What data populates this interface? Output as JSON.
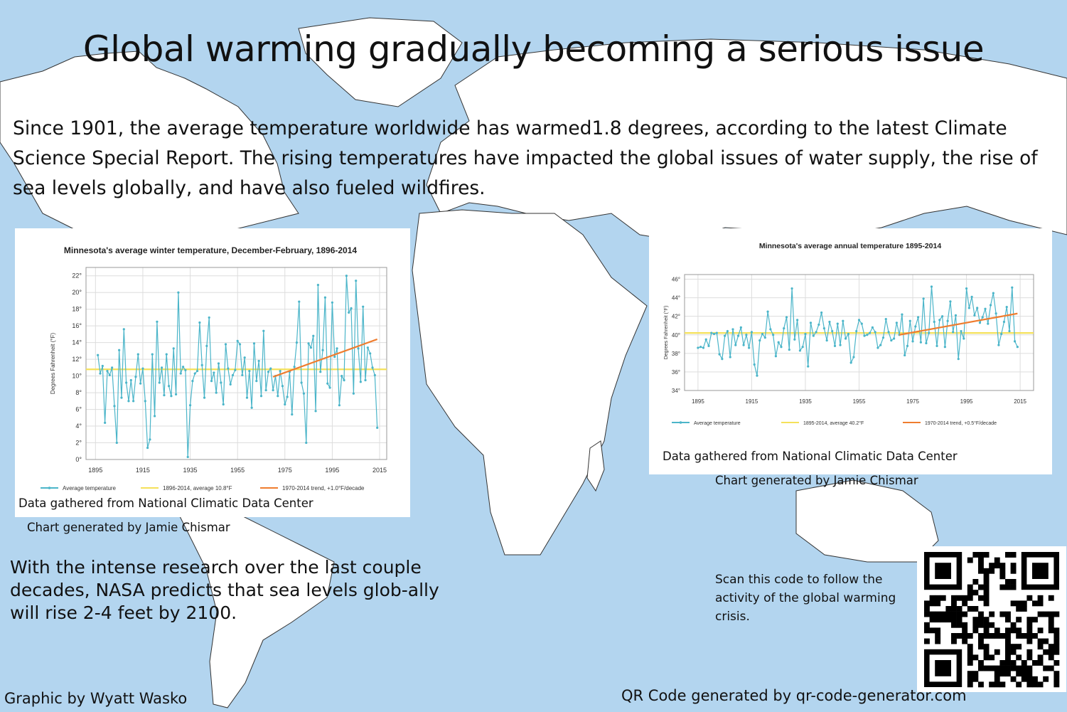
{
  "headline": "Global warming gradually becoming a serious issue",
  "intro": "Since 1901, the average temperature worldwide has warmed1.8 degrees, according to the latest Climate Science Special Report. The rising temperatures have impacted the global issues of water supply, the rise of sea levels globally, and have also fueled wildfires.",
  "prediction": "With the intense research over the last couple decades, NASA predicts that sea levels glob-ally will rise 2-4 feet by 2100.",
  "qr_caption": "Scan this code to follow the activity of the global warming crisis.",
  "footer": {
    "graphic_credit": "Graphic by Wyatt Wasko",
    "qr_credit": "QR Code generated by qr-code-generator.com"
  },
  "colors": {
    "ocean": "#b3d5ef",
    "land": "#ffffff",
    "series": "#4bb5c9",
    "average": "#f5e15a",
    "trend": "#ef7d2f"
  },
  "chart_data": [
    {
      "type": "line",
      "title": "Minnesota's average winter temperature, December-February, 1896-2014",
      "ylabel": "Degrees Fahrenheit (°F)",
      "xlabel": "",
      "xlim": [
        1891,
        2018
      ],
      "ylim": [
        0,
        23
      ],
      "x_ticks": [
        1895,
        1915,
        1935,
        1955,
        1975,
        1995,
        2015
      ],
      "y_ticks": [
        0,
        2,
        4,
        6,
        8,
        10,
        12,
        14,
        16,
        18,
        20,
        22
      ],
      "y_tick_suffix": "°",
      "grid": true,
      "legend": [
        "Average temperature",
        "1896-2014, average 10.8°F",
        "1970-2014 trend, +1.0°F/decade"
      ],
      "legend_position": "bottom",
      "series": [
        {
          "name": "Average temperature",
          "x_start": 1896,
          "values": [
            12.5,
            10.3,
            11.2,
            4.4,
            10.6,
            10.1,
            11.0,
            6.4,
            2.0,
            13.1,
            7.4,
            15.6,
            9.2,
            7.0,
            9.5,
            7.0,
            9.9,
            12.6,
            9.1,
            10.9,
            7.0,
            1.4,
            2.4,
            12.6,
            5.2,
            16.5,
            9.2,
            11.0,
            7.7,
            12.6,
            8.8,
            7.6,
            13.3,
            7.8,
            20.0,
            10.3,
            11.1,
            10.7,
            0.3,
            6.5,
            9.4,
            10.3,
            10.6,
            16.4,
            11.3,
            7.4,
            13.6,
            17.0,
            9.4,
            10.4,
            8.0,
            11.5,
            9.2,
            6.6,
            13.8,
            10.9,
            9.0,
            10.1,
            10.7,
            14.2,
            13.8,
            10.1,
            12.2,
            7.4,
            10.6,
            6.2,
            13.9,
            9.4,
            11.8,
            7.6,
            15.4,
            8.3,
            10.5,
            10.9,
            8.3,
            10.0,
            7.6,
            10.6,
            8.8,
            6.6,
            7.5,
            10.5,
            5.4,
            11.1,
            14.0,
            18.9,
            9.2,
            7.9,
            2.0,
            13.9,
            13.4,
            14.8,
            5.8,
            20.9,
            10.5,
            13.1,
            19.4,
            9.1,
            8.6,
            18.8,
            12.3,
            13.3,
            6.5,
            10.0,
            9.5,
            22.0,
            17.6,
            18.1,
            7.9,
            21.4,
            13.3,
            9.3,
            18.3,
            9.5,
            13.4,
            12.7,
            11.0,
            10.1,
            3.8
          ]
        },
        {
          "name": "1896-2014, average 10.8°F",
          "value": 10.8
        },
        {
          "name": "1970-2014 trend, +1.0°F/decade",
          "x": [
            1970,
            2014
          ],
          "y": [
            9.9,
            14.4
          ]
        }
      ]
    },
    {
      "type": "line",
      "title": "Minnesota's average annual temperature 1895-2014",
      "ylabel": "Degrees Fahrenheit (°F)",
      "xlabel": "",
      "xlim": [
        1890,
        2020
      ],
      "ylim": [
        34,
        46.5
      ],
      "x_ticks": [
        1895,
        1915,
        1935,
        1955,
        1975,
        1995,
        2015
      ],
      "y_ticks": [
        34,
        36,
        38,
        40,
        42,
        44,
        46
      ],
      "y_tick_suffix": "°",
      "grid": true,
      "legend": [
        "Average temperature",
        "1895-2014, average 40.2°F",
        "1970-2014 trend, +0.5°F/decade"
      ],
      "legend_position": "bottom",
      "series": [
        {
          "name": "Average temperature",
          "x_start": 1895,
          "values": [
            38.6,
            38.7,
            38.6,
            39.5,
            38.8,
            40.2,
            40.1,
            40.2,
            37.9,
            37.4,
            39.9,
            40.4,
            37.6,
            40.6,
            38.9,
            39.9,
            40.8,
            38.9,
            40.0,
            38.6,
            40.3,
            36.8,
            35.6,
            39.4,
            40.1,
            39.7,
            42.5,
            40.6,
            40.0,
            37.7,
            39.2,
            38.7,
            40.7,
            41.9,
            38.4,
            45.0,
            39.5,
            41.6,
            38.3,
            38.7,
            40.1,
            36.6,
            41.3,
            39.9,
            40.3,
            41.1,
            42.4,
            40.7,
            39.4,
            41.4,
            40.4,
            38.8,
            41.2,
            38.9,
            41.5,
            39.6,
            40.1,
            37.0,
            37.6,
            40.4,
            41.6,
            41.2,
            39.9,
            40.0,
            40.2,
            40.8,
            40.3,
            38.6,
            38.9,
            39.7,
            41.7,
            40.3,
            39.4,
            39.6,
            41.3,
            40.0,
            42.2,
            37.8,
            38.8,
            41.5,
            39.3,
            40.9,
            41.9,
            39.2,
            43.9,
            39.1,
            40.2,
            45.2,
            41.4,
            38.8,
            41.6,
            42.0,
            38.7,
            41.5,
            43.6,
            40.3,
            42.1,
            37.4,
            40.4,
            39.6,
            45.0,
            42.9,
            44.1,
            42.1,
            42.9,
            41.3,
            41.9,
            42.8,
            41.2,
            43.2,
            44.5,
            42.3,
            38.9,
            40.1,
            41.4,
            43.0,
            40.4,
            45.1,
            39.3,
            38.7
          ]
        },
        {
          "name": "1895-2014, average 40.2°F",
          "value": 40.2
        },
        {
          "name": "1970-2014 trend, +0.5°F/decade",
          "x": [
            1970,
            2014
          ],
          "y": [
            40.0,
            42.3
          ]
        }
      ]
    }
  ],
  "charts": [
    {
      "source": "Data gathered from National Climatic Data Center",
      "credit": "Chart generated by Jamie Chismar"
    },
    {
      "source": "Data gathered from National Climatic Data Center",
      "credit": "Chart generated by Jamie Chismar"
    }
  ]
}
